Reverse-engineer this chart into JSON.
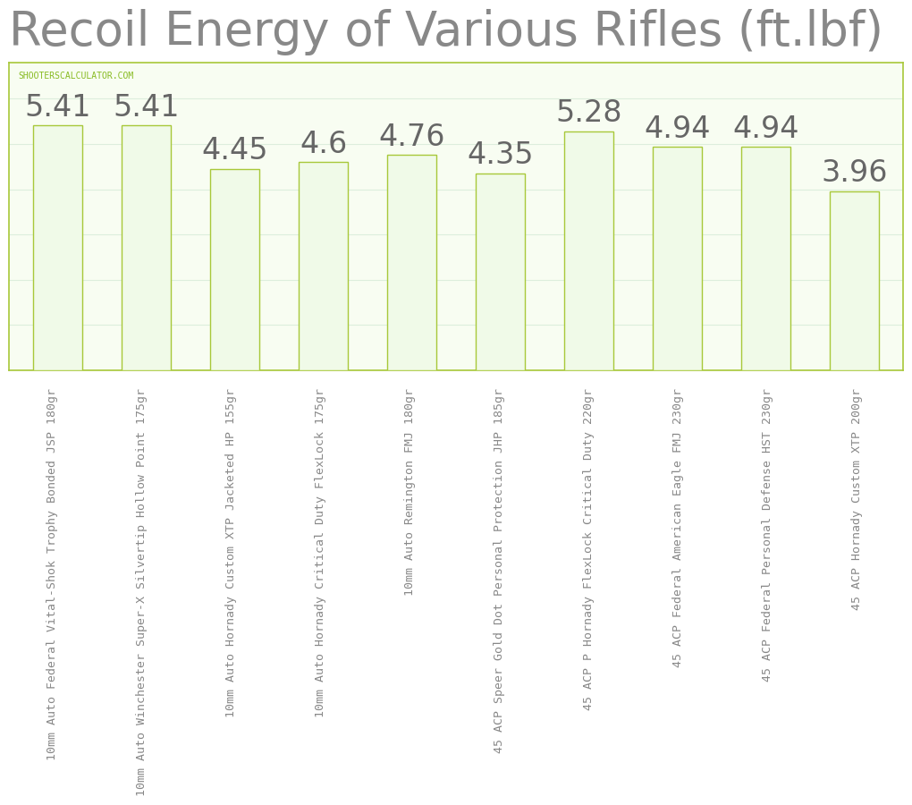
{
  "title": "Recoil Energy of Various Rifles (ft.lbf)",
  "categories": [
    "10mm Auto Federal Vital-Shok Trophy Bonded JSP 180gr",
    "10mm Auto Winchester Super-X Silvertip Hollow Point 175gr",
    "10mm Auto Hornady Custom XTP Jacketed HP 155gr",
    "10mm Auto Hornady Critical Duty FlexLock 175gr",
    "10mm Auto Remington FMJ 180gr",
    "45 ACP Speer Gold Dot Personal Protection JHP 185gr",
    "45 ACP P Hornady FlexLock Critical Duty 220gr",
    "45 ACP Federal American Eagle FMJ 230gr",
    "45 ACP Federal Personal Defense HST 230gr",
    "45 ACP Hornady Custom XTP 200gr"
  ],
  "values": [
    5.41,
    5.41,
    4.45,
    4.6,
    4.76,
    4.35,
    5.28,
    4.94,
    4.94,
    3.96
  ],
  "bar_color": "#f0fae8",
  "bar_edge_color": "#a8c83a",
  "title_color": "#888888",
  "title_fontsize": 38,
  "value_fontsize": 24,
  "value_color": "#666666",
  "xlabel_fontsize": 9.5,
  "xlabel_color": "#888888",
  "background_color": "#ffffff",
  "plot_bg_color": "#f8fdf2",
  "border_color": "#a8c83a",
  "grid_color": "#ddeedd",
  "watermark": "SHOOTERSCALCULATOR.COM",
  "watermark_color": "#88bb22",
  "watermark_fontsize": 7,
  "ylim": [
    0,
    6.8
  ]
}
